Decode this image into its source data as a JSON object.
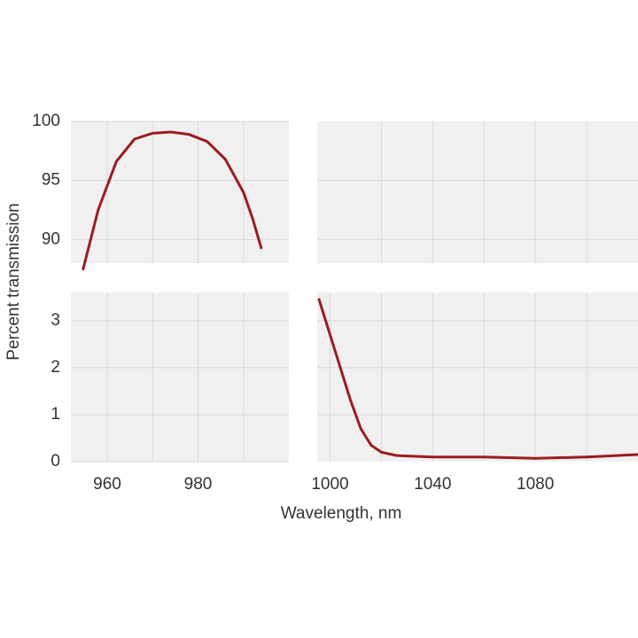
{
  "chart_data": [
    {
      "type": "line",
      "ylabel": "Percent transmission",
      "xlim": [
        952,
        1000
      ],
      "ylim": [
        88,
        100
      ],
      "yticks": [
        90,
        95,
        100
      ],
      "xgrid": [
        960,
        970,
        980,
        990
      ],
      "series": [
        {
          "color": "#9b1c20",
          "x": [
            954.7,
            958,
            962,
            966,
            970,
            974,
            978,
            982,
            986,
            990,
            992,
            993.9
          ],
          "values": [
            87.5,
            92.5,
            96.6,
            98.5,
            99.0,
            99.1,
            98.9,
            98.3,
            96.8,
            94.0,
            91.8,
            89.3
          ]
        }
      ]
    },
    {
      "type": "line",
      "xlim": [
        995,
        1120
      ],
      "ylim": [
        88,
        100
      ],
      "ygrid": [
        90,
        95
      ],
      "xgrid": [
        1020,
        1040,
        1060,
        1080,
        1100
      ],
      "series": []
    },
    {
      "type": "line",
      "xlabel": "Wavelength, nm",
      "xlim": [
        952,
        1000
      ],
      "ylim": [
        0,
        3.6
      ],
      "xticks": [
        960,
        980
      ],
      "yticks": [
        0,
        1,
        2,
        3
      ],
      "xgrid": [
        970,
        990
      ],
      "series": []
    },
    {
      "type": "line",
      "xlim": [
        995,
        1120
      ],
      "ylim": [
        0,
        3.6
      ],
      "xticks": [
        1000,
        1040,
        1080
      ],
      "ygrid": [
        1,
        2,
        3
      ],
      "xgrid": [
        1020,
        1060,
        1100
      ],
      "series": [
        {
          "color": "#9b1c20",
          "x": [
            995.7,
            1000,
            1004,
            1008,
            1012,
            1016,
            1020,
            1026,
            1040,
            1060,
            1080,
            1100,
            1120
          ],
          "values": [
            3.45,
            2.7,
            2.0,
            1.3,
            0.7,
            0.35,
            0.2,
            0.13,
            0.1,
            0.1,
            0.07,
            0.1,
            0.15
          ]
        }
      ]
    }
  ]
}
